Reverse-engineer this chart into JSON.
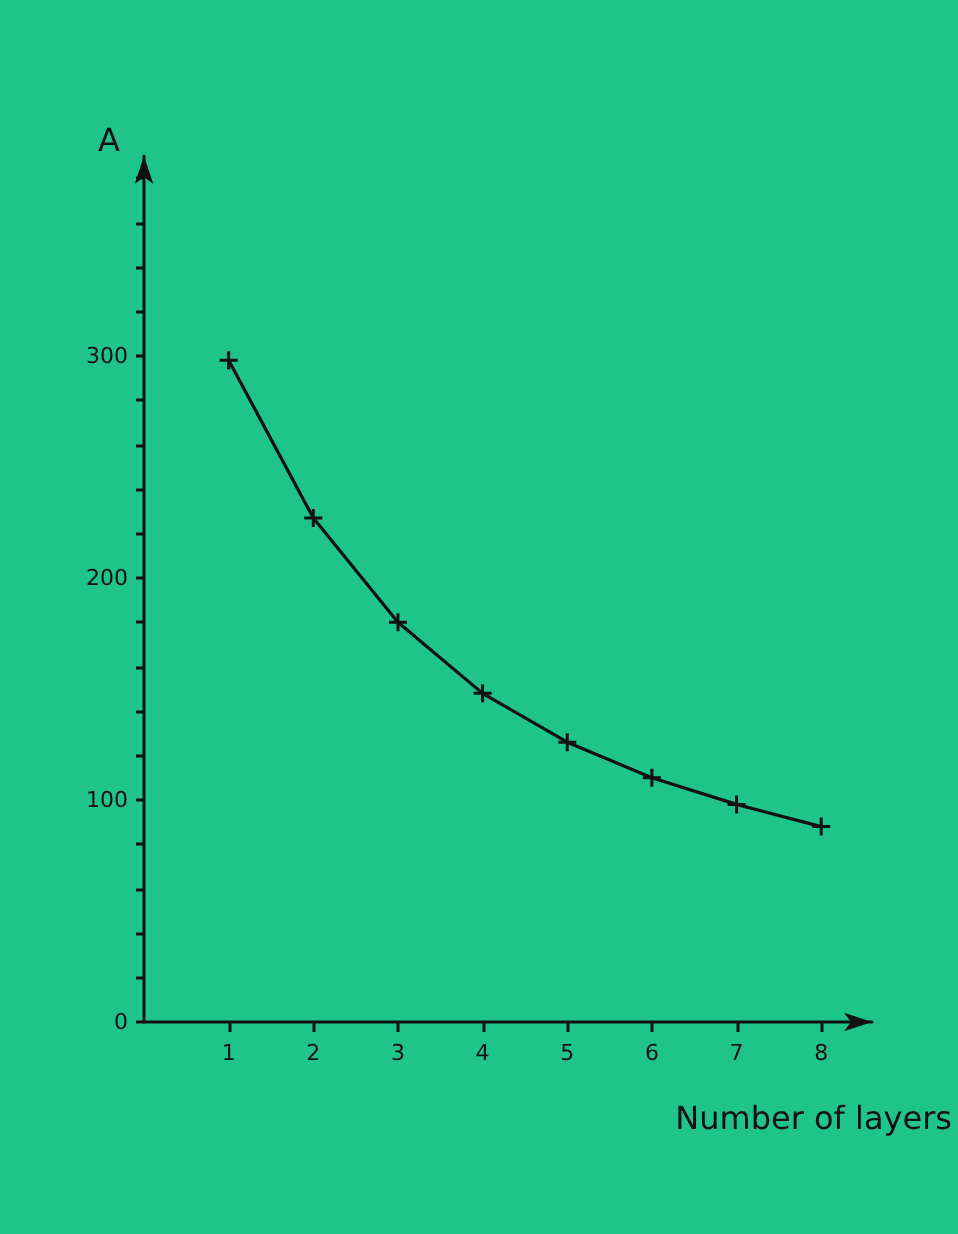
{
  "chart_data": {
    "type": "line",
    "xlabel": "Number of layers",
    "ylabel": "A",
    "x": [
      1,
      2,
      3,
      4,
      5,
      6,
      7,
      8
    ],
    "series": [
      {
        "color": "#111111",
        "values": [
          298,
          227,
          180,
          148,
          126,
          110,
          98,
          88
        ]
      }
    ],
    "xlim": [
      0,
      8.6
    ],
    "xticks": [
      1,
      2,
      3,
      4,
      5,
      6,
      7,
      8
    ],
    "ylim": [
      0,
      390
    ],
    "yticks": [
      0,
      {
        "value": 20,
        "label": null
      },
      {
        "value": 40,
        "label": null
      },
      {
        "value": 60,
        "label": null
      },
      {
        "value": 80,
        "label": null
      },
      100,
      {
        "value": 120,
        "label": null
      },
      {
        "value": 140,
        "label": null
      },
      {
        "value": 160,
        "label": null
      },
      {
        "value": 180,
        "label": null
      },
      200,
      {
        "value": 220,
        "label": null
      },
      {
        "value": 240,
        "label": null
      },
      {
        "value": 260,
        "label": null
      },
      {
        "value": 280,
        "label": null
      },
      300,
      {
        "value": 320,
        "label": null
      },
      {
        "value": 340,
        "label": null
      },
      {
        "value": 360,
        "label": null
      },
      {
        "value": 380,
        "label": null
      }
    ],
    "grid": false,
    "marker": "cross",
    "line_style": "solid"
  }
}
